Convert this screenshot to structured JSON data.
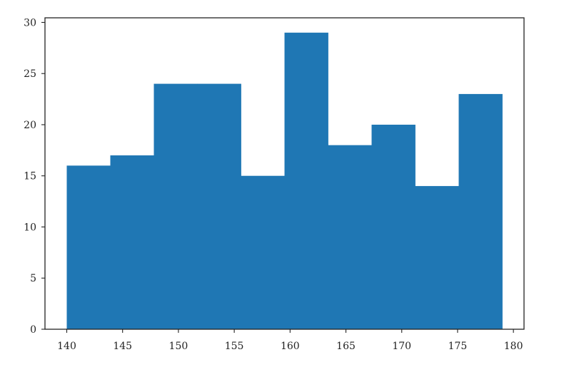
{
  "chart_data": {
    "type": "bar",
    "subtype": "histogram",
    "bin_edges": [
      140,
      143.9,
      147.8,
      151.7,
      155.6,
      159.5,
      163.4,
      167.3,
      171.2,
      175.1,
      179
    ],
    "values": [
      16,
      17,
      24,
      24,
      15,
      29,
      18,
      20,
      14,
      23
    ],
    "xlim": [
      138.05,
      180.95
    ],
    "ylim": [
      0,
      30.45
    ],
    "x_ticks": [
      140,
      145,
      150,
      155,
      160,
      165,
      170,
      175,
      180
    ],
    "y_ticks": [
      0,
      5,
      10,
      15,
      20,
      25,
      30
    ],
    "bar_color": "#1f77b4",
    "grid": false,
    "title": "",
    "xlabel": "",
    "ylabel": ""
  }
}
